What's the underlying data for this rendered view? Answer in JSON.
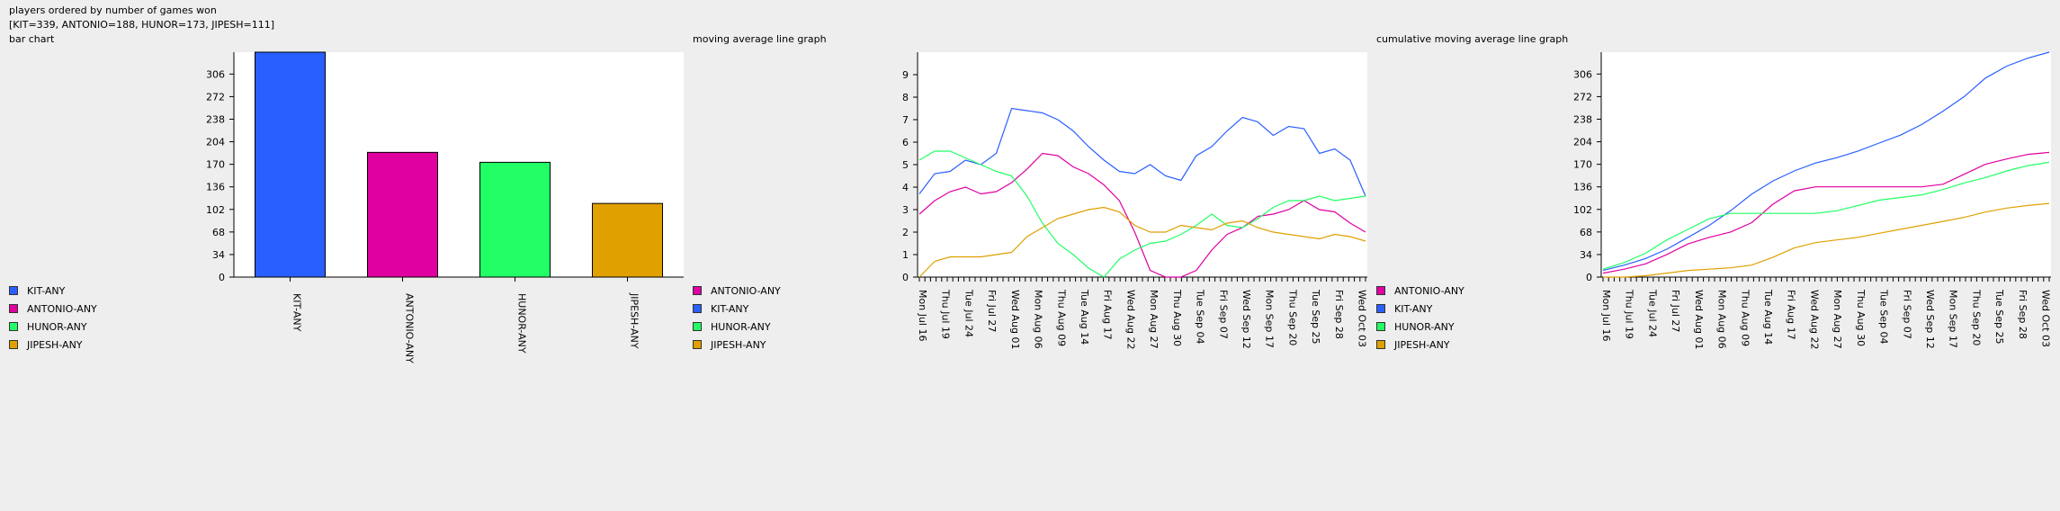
{
  "header": {
    "title": "players ordered by number of games won",
    "summary": "[KIT=339, ANTONIO=188, HUNOR=173, JIPESH=111]",
    "left_subtitle": "bar chart",
    "middle_subtitle": "moving average line graph",
    "right_subtitle": "cumulative moving average line graph"
  },
  "colors": {
    "KIT-ANY": "#2a5fff",
    "ANTONIO-ANY": "#e000a0",
    "HUNOR-ANY": "#22ff66",
    "JIPESH-ANY": "#e0a000"
  },
  "legends": {
    "left": [
      "KIT-ANY",
      "ANTONIO-ANY",
      "HUNOR-ANY",
      "JIPESH-ANY"
    ],
    "middle": [
      "ANTONIO-ANY",
      "KIT-ANY",
      "HUNOR-ANY",
      "JIPESH-ANY"
    ],
    "right": [
      "ANTONIO-ANY",
      "KIT-ANY",
      "HUNOR-ANY",
      "JIPESH-ANY"
    ]
  },
  "chart_data": [
    {
      "type": "bar",
      "title": "bar chart",
      "categories": [
        "KIT-ANY",
        "ANTONIO-ANY",
        "HUNOR-ANY",
        "JIPESH-ANY"
      ],
      "values": [
        339,
        188,
        173,
        111
      ],
      "ylim": [
        0,
        339
      ],
      "yticks": [
        0,
        34,
        68,
        102,
        136,
        170,
        204,
        238,
        272,
        306
      ]
    },
    {
      "type": "line",
      "title": "moving average line graph",
      "x_labels": [
        "Mon Jul 16",
        "Thu Jul 19",
        "Tue Jul 24",
        "Fri Jul 27",
        "Wed Aug 01",
        "Mon Aug 06",
        "Thu Aug 09",
        "Tue Aug 14",
        "Fri Aug 17",
        "Wed Aug 22",
        "Mon Aug 27",
        "Thu Aug 30",
        "Tue Sep 04",
        "Fri Sep 07",
        "Wed Sep 12",
        "Mon Sep 17",
        "Thu Sep 20",
        "Tue Sep 25",
        "Fri Sep 28",
        "Wed Oct 03"
      ],
      "ylim": [
        0,
        10
      ],
      "yticks": [
        0,
        1,
        2,
        3,
        4,
        5,
        6,
        7,
        8,
        9
      ],
      "series": [
        {
          "name": "KIT-ANY",
          "values": [
            3.7,
            4.6,
            4.7,
            5.2,
            5.0,
            5.5,
            7.5,
            7.4,
            7.3,
            7.0,
            6.5,
            5.8,
            5.2,
            4.7,
            4.6,
            5.0,
            4.5,
            4.3,
            5.4,
            5.8,
            6.5,
            7.1,
            6.9,
            6.3,
            6.7,
            6.6,
            5.5,
            5.7,
            5.2,
            3.6
          ]
        },
        {
          "name": "ANTONIO-ANY",
          "values": [
            2.8,
            3.4,
            3.8,
            4.0,
            3.7,
            3.8,
            4.2,
            4.8,
            5.5,
            5.4,
            4.9,
            4.6,
            4.1,
            3.4,
            2.0,
            0.3,
            0.0,
            0.0,
            0.3,
            1.2,
            1.9,
            2.2,
            2.7,
            2.8,
            3.0,
            3.4,
            3.0,
            2.9,
            2.4,
            2.0
          ]
        },
        {
          "name": "HUNOR-ANY",
          "values": [
            5.2,
            5.6,
            5.6,
            5.3,
            5.0,
            4.7,
            4.5,
            3.6,
            2.4,
            1.5,
            1.0,
            0.4,
            0.0,
            0.8,
            1.2,
            1.5,
            1.6,
            1.9,
            2.3,
            2.8,
            2.3,
            2.2,
            2.6,
            3.1,
            3.4,
            3.4,
            3.6,
            3.4,
            3.5,
            3.6
          ]
        },
        {
          "name": "JIPESH-ANY",
          "values": [
            0.0,
            0.7,
            0.9,
            0.9,
            0.9,
            1.0,
            1.1,
            1.8,
            2.2,
            2.6,
            2.8,
            3.0,
            3.1,
            2.9,
            2.3,
            2.0,
            2.0,
            2.3,
            2.2,
            2.1,
            2.4,
            2.5,
            2.2,
            2.0,
            1.9,
            1.8,
            1.7,
            1.9,
            1.8,
            1.6
          ]
        }
      ]
    },
    {
      "type": "line",
      "title": "cumulative moving average line graph",
      "x_labels": [
        "Mon Jul 16",
        "Thu Jul 19",
        "Tue Jul 24",
        "Fri Jul 27",
        "Wed Aug 01",
        "Mon Aug 06",
        "Thu Aug 09",
        "Tue Aug 14",
        "Fri Aug 17",
        "Wed Aug 22",
        "Mon Aug 27",
        "Thu Aug 30",
        "Tue Sep 04",
        "Fri Sep 07",
        "Wed Sep 12",
        "Mon Sep 17",
        "Thu Sep 20",
        "Tue Sep 25",
        "Fri Sep 28",
        "Wed Oct 03"
      ],
      "ylim": [
        0,
        339
      ],
      "yticks": [
        0,
        34,
        68,
        102,
        136,
        170,
        204,
        238,
        272,
        306
      ],
      "series": [
        {
          "name": "KIT-ANY",
          "values": [
            10,
            18,
            28,
            42,
            60,
            78,
            100,
            125,
            145,
            160,
            172,
            180,
            190,
            202,
            214,
            230,
            250,
            272,
            300,
            318,
            330,
            339
          ]
        },
        {
          "name": "ANTONIO-ANY",
          "values": [
            6,
            12,
            20,
            34,
            50,
            60,
            68,
            82,
            110,
            130,
            136,
            136,
            136,
            136,
            136,
            136,
            140,
            155,
            170,
            178,
            185,
            188
          ]
        },
        {
          "name": "HUNOR-ANY",
          "values": [
            12,
            22,
            36,
            56,
            72,
            88,
            96,
            96,
            96,
            96,
            96,
            100,
            108,
            116,
            120,
            124,
            132,
            142,
            150,
            160,
            168,
            173
          ]
        },
        {
          "name": "JIPESH-ANY",
          "values": [
            0,
            0,
            2,
            6,
            10,
            12,
            14,
            18,
            30,
            44,
            52,
            56,
            60,
            66,
            72,
            78,
            84,
            90,
            98,
            104,
            108,
            111
          ]
        }
      ]
    }
  ]
}
